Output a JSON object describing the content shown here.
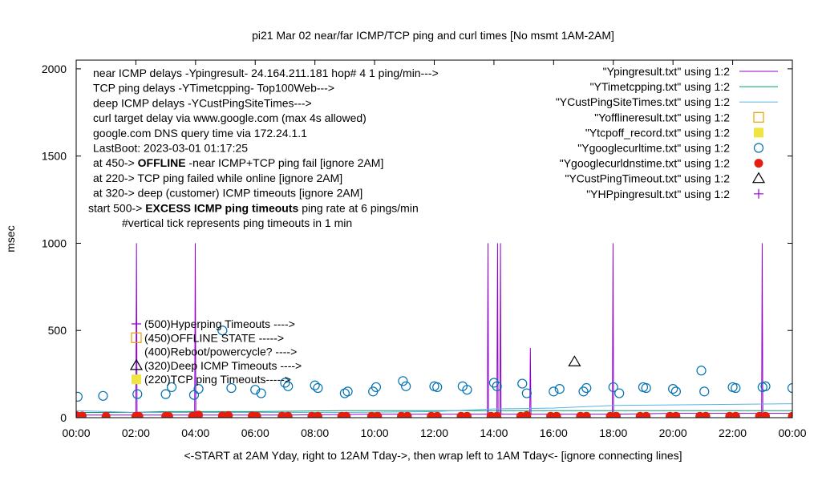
{
  "chart_data": {
    "type": "line",
    "title": "pi21 Mar 02  near/far ICMP/TCP ping and curl times [No msmt 1AM-2AM]",
    "xlabel": "<-START at 2AM Yday, right to 12AM Tday->, then wrap left to 1AM Tday<- [ignore connecting lines]",
    "ylabel": "msec",
    "xlim": [
      0,
      24
    ],
    "ylim": [
      0,
      2050
    ],
    "x_ticks": [
      {
        "v": 0,
        "label": "00:00"
      },
      {
        "v": 2,
        "label": "02:00"
      },
      {
        "v": 4,
        "label": "04:00"
      },
      {
        "v": 6,
        "label": "06:00"
      },
      {
        "v": 8,
        "label": "08:00"
      },
      {
        "v": 10,
        "label": "10:00"
      },
      {
        "v": 12,
        "label": "12:00"
      },
      {
        "v": 14,
        "label": "14:00"
      },
      {
        "v": 16,
        "label": "16:00"
      },
      {
        "v": 18,
        "label": "18:00"
      },
      {
        "v": 20,
        "label": "20:00"
      },
      {
        "v": 22,
        "label": "22:00"
      },
      {
        "v": 24,
        "label": "00:00"
      }
    ],
    "y_ticks": [
      {
        "v": 0,
        "label": "0"
      },
      {
        "v": 500,
        "label": "500"
      },
      {
        "v": 1000,
        "label": "1000"
      },
      {
        "v": 1500,
        "label": "1500"
      },
      {
        "v": 2000,
        "label": "2000"
      }
    ],
    "grid": false,
    "legend_position": "top-right",
    "info_lines": [
      {
        "text": "near ICMP delays -Ypingresult- 24.164.211.181 hop# 4 1 ping/min--->"
      },
      {
        "text": "TCP ping delays -YTimetcpping- Top100Web--->"
      },
      {
        "text": "deep ICMP delays -YCustPingSiteTimes--->"
      },
      {
        "text": "curl target delay via www.google.com (max 4s allowed)"
      },
      {
        "text": "google.com DNS query time via 172.24.1.1"
      },
      {
        "text": "LastBoot: 2023-03-01 01:17:25"
      },
      {
        "pre": "at 450-> ",
        "bold": "OFFLINE",
        "post": " -near ICMP+TCP ping fail [ignore 2AM]"
      },
      {
        "text": "at 220-> TCP ping failed while online [ignore 2AM]"
      },
      {
        "text": "at 320-> deep (customer) ICMP timeouts [ignore 2AM]"
      },
      {
        "pre": "start 500-> ",
        "bold": "EXCESS ICMP ping timeouts",
        "post": "  ping rate at 6 pings/min"
      },
      {
        "text": "#vertical tick represents ping timeouts in 1 min"
      }
    ],
    "level_markers": [
      {
        "label": "(500)Hyperping Timeouts ---->",
        "y": 500,
        "marker": "plus",
        "color": "#9400d3"
      },
      {
        "label": "(450)OFFLINE STATE ----->",
        "y": 450,
        "marker": "open-square",
        "color": "#e69f00"
      },
      {
        "label": "(400)Reboot/powercycle? ---->",
        "y": 400,
        "marker": "none",
        "color": "#000000"
      },
      {
        "label": "(320)Deep ICMP Timeouts ---->",
        "y": 320,
        "marker": "triangle",
        "color": "#000000"
      },
      {
        "label": "(220)TCP ping Timeouts----->",
        "y": 220,
        "marker": "filled-square",
        "color": "#f0e442"
      }
    ],
    "legend": [
      {
        "label": "\"Ypingresult.txt\" using 1:2",
        "style": "line",
        "color": "#9400d3"
      },
      {
        "label": "\"YTimetcpping.txt\" using 1:2",
        "style": "line",
        "color": "#009e73"
      },
      {
        "label": "\"YCustPingSiteTimes.txt\" using 1:2",
        "style": "line",
        "color": "#56b4e9"
      },
      {
        "label": "\"Yofflineresult.txt\" using 1:2",
        "style": "open-square",
        "color": "#e69f00"
      },
      {
        "label": "\"Ytcpoff_record.txt\" using 1:2",
        "style": "filled-square",
        "color": "#f0e442"
      },
      {
        "label": "\"Ygooglecurltime.txt\" using 1:2",
        "style": "open-circle",
        "color": "#0072b2"
      },
      {
        "label": "\"Ygooglecurldnstime.txt\" using 1:2",
        "style": "filled-circle",
        "color": "#e51e10"
      },
      {
        "label": "\"YCustPingTimeout.txt\" using 1:2",
        "style": "triangle",
        "color": "#000000"
      },
      {
        "label": "\"YHPpingresult.txt\" using 1:2",
        "style": "plus",
        "color": "#9400d3"
      }
    ],
    "series": [
      {
        "name": "\"Ypingresult.txt\" using 1:2",
        "kind": "line",
        "color": "#9400d3",
        "x": [
          0,
          1.5,
          2.0,
          2.02,
          2.04,
          3.5,
          3.97,
          3.99,
          4.01,
          7,
          10,
          12,
          13,
          13.78,
          13.8,
          13.82,
          14.1,
          14.12,
          14.14,
          14.2,
          14.22,
          14.24,
          14.4,
          15.2,
          15.22,
          15.24,
          16.8,
          17.97,
          17.99,
          18.01,
          20,
          22,
          22.97,
          22.99,
          23.01,
          24
        ],
        "y": [
          15,
          15,
          15,
          1000,
          15,
          15,
          15,
          1000,
          15,
          15,
          20,
          20,
          20,
          20,
          1000,
          20,
          20,
          1000,
          20,
          20,
          1000,
          20,
          20,
          20,
          400,
          20,
          20,
          20,
          1000,
          20,
          25,
          25,
          25,
          1000,
          25,
          25
        ]
      },
      {
        "name": "\"YTimetcpping.txt\" using 1:2",
        "kind": "line",
        "color": "#009e73",
        "x": [
          0,
          1.8,
          3.0,
          6.0,
          9.0,
          12.0,
          15.0,
          18.0,
          21.0,
          24
        ],
        "y": [
          30,
          30,
          35,
          35,
          40,
          40,
          40,
          40,
          40,
          40
        ]
      },
      {
        "name": "\"YCustPingSiteTimes.txt\" using 1:2",
        "kind": "line",
        "color": "#56b4e9",
        "x": [
          0,
          1.0,
          2.0,
          3.0,
          6.0,
          9.0,
          12.0,
          14.0,
          16.0,
          18.0,
          21.0,
          24
        ],
        "y": [
          40,
          35,
          30,
          30,
          30,
          30,
          35,
          50,
          55,
          70,
          75,
          80
        ]
      },
      {
        "name": "\"Ygooglecurltime.txt\" using 1:2",
        "kind": "scatter",
        "marker": "open-circle",
        "color": "#0072b2",
        "x": [
          0.05,
          0.9,
          2.05,
          3.0,
          3.2,
          3.95,
          4.1,
          4.9,
          5.2,
          6.0,
          6.2,
          7.0,
          7.1,
          8.0,
          8.1,
          9.0,
          9.1,
          9.95,
          10.05,
          10.95,
          11.05,
          12.0,
          12.1,
          12.95,
          13.1,
          14.0,
          14.1,
          14.95,
          15.1,
          16.0,
          16.2,
          17.0,
          17.1,
          18.0,
          18.2,
          19.0,
          19.1,
          20.0,
          20.1,
          20.95,
          21.05,
          22.0,
          22.1,
          23.0,
          23.1,
          24.0
        ],
        "y": [
          120,
          125,
          135,
          135,
          175,
          130,
          165,
          500,
          170,
          160,
          140,
          200,
          180,
          185,
          170,
          140,
          150,
          150,
          175,
          210,
          180,
          180,
          175,
          180,
          160,
          200,
          180,
          195,
          140,
          150,
          165,
          150,
          170,
          175,
          140,
          175,
          170,
          165,
          150,
          270,
          150,
          175,
          170,
          175,
          180,
          170
        ]
      },
      {
        "name": "\"Ygooglecurldnstime.txt\" using 1:2",
        "kind": "scatter",
        "marker": "filled-circle",
        "color": "#e51e10",
        "x": [
          0.0,
          0.2,
          1.0,
          2.0,
          2.1,
          3.0,
          3.1,
          3.9,
          4.0,
          4.1,
          4.9,
          5.1,
          5.9,
          6.05,
          6.9,
          7.1,
          7.9,
          8.1,
          8.9,
          9.05,
          9.9,
          10.1,
          10.9,
          11.1,
          11.9,
          12.1,
          12.9,
          13.1,
          13.9,
          14.1,
          14.9,
          15.1,
          15.9,
          16.1,
          16.9,
          17.1,
          17.9,
          18.1,
          18.9,
          19.1,
          19.9,
          20.1,
          20.9,
          21.1,
          21.9,
          22.1,
          22.9,
          23.1,
          24.0
        ],
        "y": [
          12,
          10,
          8,
          8,
          8,
          8,
          8,
          8,
          10,
          15,
          10,
          12,
          10,
          8,
          8,
          8,
          8,
          8,
          8,
          8,
          8,
          8,
          8,
          8,
          8,
          8,
          8,
          8,
          8,
          8,
          8,
          12,
          8,
          8,
          8,
          8,
          8,
          8,
          8,
          8,
          8,
          8,
          8,
          8,
          8,
          8,
          8,
          8,
          8
        ]
      },
      {
        "name": "\"YCustPingTimeout.txt\" using 1:2",
        "kind": "scatter",
        "marker": "triangle",
        "color": "#000000",
        "x": [
          16.7
        ],
        "y": [
          320
        ]
      }
    ]
  }
}
